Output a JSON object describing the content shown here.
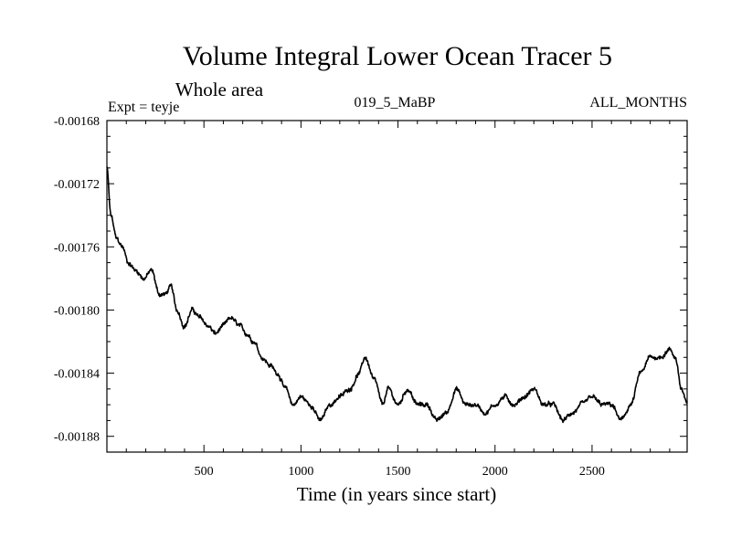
{
  "chart_data": {
    "type": "line",
    "title": "Volume Integral Lower Ocean Tracer 5",
    "subtitle": "Whole area",
    "expt_label": "Expt = teyje",
    "run_label": "019_5_MaBP",
    "months_label": "ALL_MONTHS",
    "xlabel": "Time (in years since start)",
    "ylabel": "",
    "xlim": [
      0,
      2990
    ],
    "ylim": [
      -0.00189,
      -0.00168
    ],
    "x_ticks": [
      500,
      1000,
      1500,
      2000,
      2500
    ],
    "x_tick_labels": [
      "500",
      "1000",
      "1500",
      "2000",
      "2500"
    ],
    "y_ticks": [
      -0.00168,
      -0.00172,
      -0.00176,
      -0.0018,
      -0.00184,
      -0.00188
    ],
    "y_tick_labels": [
      "-0.00168",
      "-0.00172",
      "-0.00176",
      "-0.00180",
      "-0.00184",
      "-0.00188"
    ],
    "line_color": "#000000",
    "series": [
      {
        "name": "tracer5",
        "x": [
          0,
          20,
          50,
          80,
          110,
          150,
          190,
          230,
          270,
          300,
          330,
          360,
          400,
          440,
          480,
          520,
          560,
          600,
          640,
          680,
          720,
          760,
          800,
          840,
          880,
          920,
          960,
          1000,
          1050,
          1100,
          1150,
          1200,
          1250,
          1300,
          1330,
          1380,
          1420,
          1450,
          1500,
          1550,
          1600,
          1650,
          1700,
          1750,
          1800,
          1850,
          1900,
          1950,
          2000,
          2050,
          2100,
          2150,
          2200,
          2250,
          2300,
          2350,
          2400,
          2450,
          2500,
          2550,
          2600,
          2650,
          2700,
          2750,
          2800,
          2850,
          2900,
          2930,
          2960,
          2990
        ],
        "values": [
          -0.00171,
          -0.00174,
          -0.001755,
          -0.00176,
          -0.00177,
          -0.001775,
          -0.00178,
          -0.001775,
          -0.00179,
          -0.00179,
          -0.001785,
          -0.0018,
          -0.00181,
          -0.0018,
          -0.001805,
          -0.00181,
          -0.001815,
          -0.00181,
          -0.001805,
          -0.00181,
          -0.001815,
          -0.00182,
          -0.00183,
          -0.001835,
          -0.00184,
          -0.00185,
          -0.00186,
          -0.001855,
          -0.00186,
          -0.00187,
          -0.00186,
          -0.001855,
          -0.00185,
          -0.00184,
          -0.00183,
          -0.001845,
          -0.00186,
          -0.00185,
          -0.00186,
          -0.00185,
          -0.00186,
          -0.00186,
          -0.00187,
          -0.001865,
          -0.00185,
          -0.00186,
          -0.00186,
          -0.001865,
          -0.00186,
          -0.001855,
          -0.00186,
          -0.001855,
          -0.00185,
          -0.00186,
          -0.00186,
          -0.00187,
          -0.001865,
          -0.00186,
          -0.001855,
          -0.00186,
          -0.00186,
          -0.00187,
          -0.00186,
          -0.00184,
          -0.00183,
          -0.00183,
          -0.001825,
          -0.00183,
          -0.00185,
          -0.00186
        ]
      }
    ]
  }
}
